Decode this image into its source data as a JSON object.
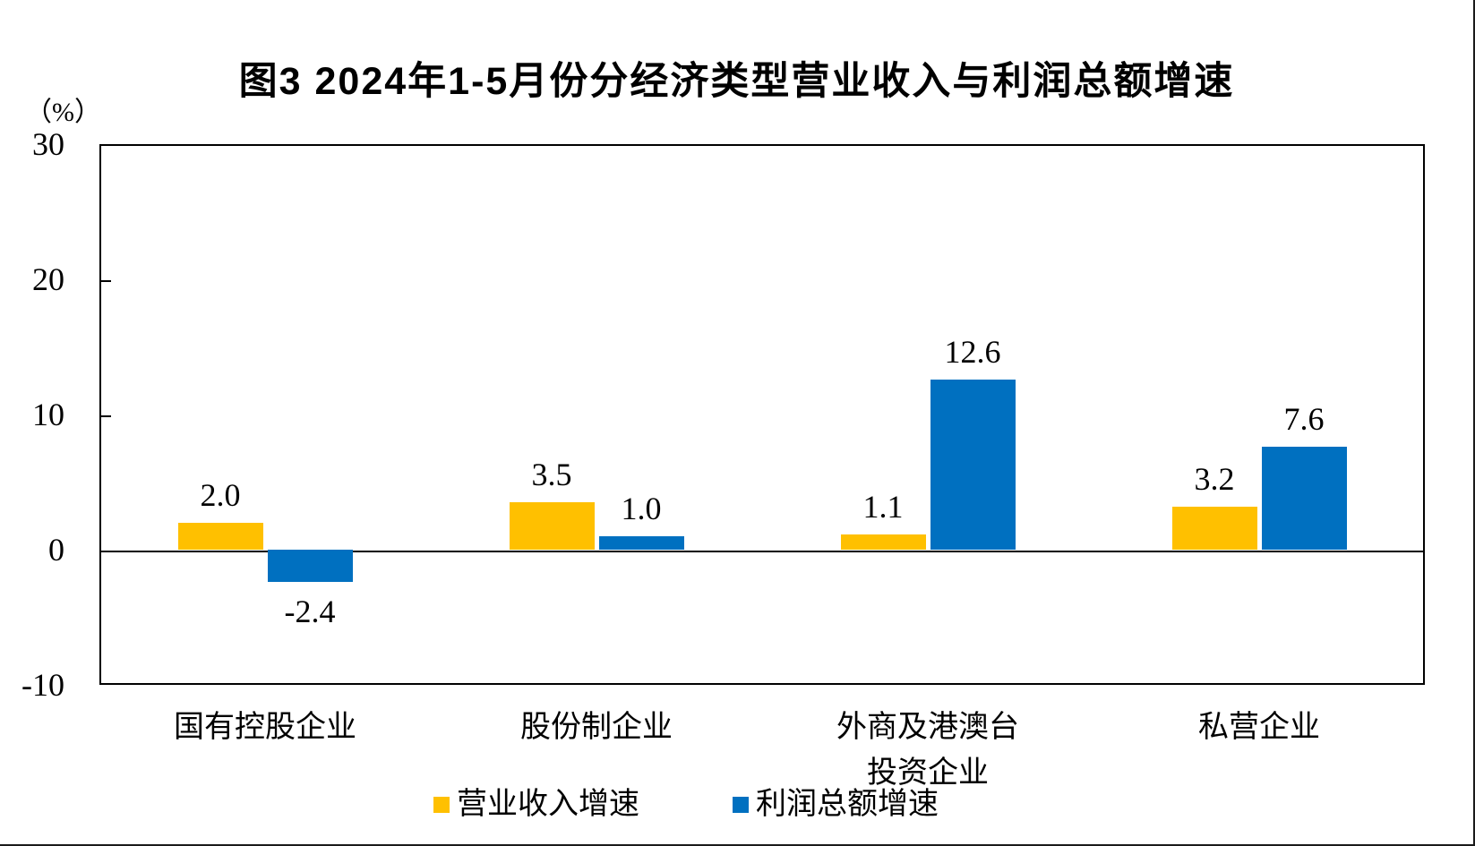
{
  "page": {
    "background": "#FFFFFF",
    "frame_border_color": "#1A1A1A"
  },
  "chart_data": {
    "type": "bar",
    "title": "图3 2024年1-5月份分经济类型营业收入与利润总额增速",
    "unit_label": "（%）",
    "categories": [
      "国有控股企业",
      "股份制企业",
      "外商及港澳台\n投资企业",
      "私营企业"
    ],
    "series": [
      {
        "name": "营业收入增速",
        "color": "#FFC000",
        "values": [
          2.0,
          3.5,
          1.1,
          3.2
        ],
        "labels": [
          "2.0",
          "3.5",
          "1.1",
          "3.2"
        ]
      },
      {
        "name": "利润总额增速",
        "color": "#0070C0",
        "values": [
          -2.4,
          1.0,
          12.6,
          7.6
        ],
        "labels": [
          "-2.4",
          "1.0",
          "12.6",
          "7.6"
        ]
      }
    ],
    "ylim": [
      -10,
      30
    ],
    "yticks": [
      30,
      20,
      10,
      0,
      -10
    ],
    "axis_color": "#000000",
    "text_color": "#000000",
    "grid": false,
    "legend_position": "bottom"
  }
}
